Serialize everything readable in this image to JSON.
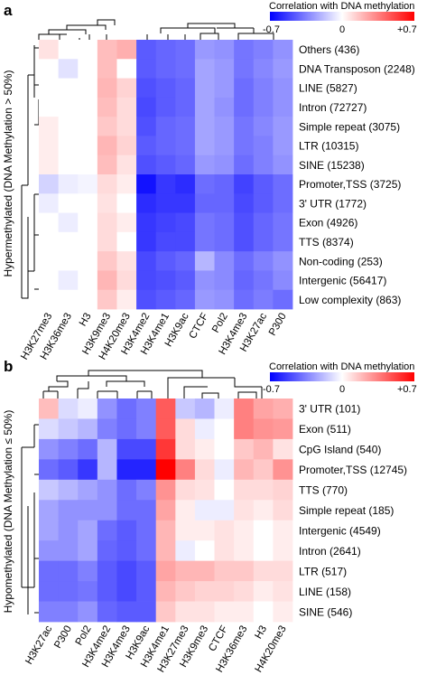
{
  "chart_data": [
    {
      "type": "heatmap",
      "panel_label": "a",
      "ylabel": "Hypermethylated (DNA Methylation > 50%)",
      "colorbar": {
        "title": "Correlation with DNA methylation",
        "min_label": "-0.7",
        "mid_label": "0",
        "max_label": "+0.7",
        "min": -0.7,
        "max": 0.7
      },
      "columns": [
        "H3K27me3",
        "H3K36me3",
        "H3",
        "H3K9me3",
        "H4K20me3",
        "H3K4me2",
        "H3K4me1",
        "H3K9ac",
        "CTCF",
        "Pol2",
        "H3K4me3",
        "H3K27ac",
        "P300"
      ],
      "rows": [
        "Others (436)",
        "DNA Transposon (2248)",
        "LINE (5827)",
        "Intron (72727)",
        "Simple repeat (3075)",
        "LTR (10315)",
        "SINE (15238)",
        "Promoter,TSS (3725)",
        "3' UTR (1772)",
        "Exon (4926)",
        "TTS (8374)",
        "Non-coding (253)",
        "Intergenic (56417)",
        "Low complexity (863)"
      ],
      "values": [
        [
          0.08,
          0.0,
          0.0,
          0.18,
          0.22,
          -0.45,
          -0.42,
          -0.4,
          -0.28,
          -0.3,
          -0.38,
          -0.35,
          -0.3
        ],
        [
          0.0,
          -0.08,
          0.0,
          0.18,
          0.0,
          -0.45,
          -0.42,
          -0.4,
          -0.25,
          -0.28,
          -0.38,
          -0.33,
          -0.28
        ],
        [
          0.0,
          0.0,
          0.0,
          0.2,
          0.12,
          -0.48,
          -0.45,
          -0.42,
          -0.25,
          -0.28,
          -0.4,
          -0.35,
          -0.3
        ],
        [
          0.0,
          0.0,
          0.0,
          0.18,
          0.1,
          -0.5,
          -0.45,
          -0.42,
          -0.25,
          -0.3,
          -0.4,
          -0.35,
          -0.3
        ],
        [
          0.05,
          0.0,
          0.0,
          0.15,
          0.1,
          -0.48,
          -0.42,
          -0.4,
          -0.25,
          -0.28,
          -0.38,
          -0.33,
          -0.28
        ],
        [
          0.05,
          0.0,
          0.0,
          0.2,
          0.12,
          -0.45,
          -0.42,
          -0.4,
          -0.25,
          -0.28,
          -0.38,
          -0.35,
          -0.28
        ],
        [
          0.05,
          0.0,
          0.0,
          0.18,
          0.08,
          -0.48,
          -0.45,
          -0.42,
          -0.28,
          -0.3,
          -0.4,
          -0.35,
          -0.3
        ],
        [
          -0.12,
          -0.05,
          -0.03,
          0.1,
          0.05,
          -0.65,
          -0.55,
          -0.58,
          -0.4,
          -0.42,
          -0.52,
          -0.45,
          -0.4
        ],
        [
          -0.05,
          0.0,
          0.0,
          0.08,
          0.0,
          -0.58,
          -0.55,
          -0.55,
          -0.42,
          -0.42,
          -0.5,
          -0.45,
          -0.4
        ],
        [
          0.0,
          -0.05,
          0.0,
          0.1,
          0.05,
          -0.55,
          -0.52,
          -0.5,
          -0.38,
          -0.4,
          -0.48,
          -0.42,
          -0.38
        ],
        [
          0.0,
          0.0,
          0.0,
          0.1,
          0.0,
          -0.55,
          -0.5,
          -0.5,
          -0.38,
          -0.4,
          -0.48,
          -0.42,
          -0.38
        ],
        [
          0.0,
          0.0,
          0.0,
          0.15,
          0.08,
          -0.5,
          -0.45,
          -0.42,
          -0.2,
          -0.32,
          -0.4,
          -0.35,
          -0.3
        ],
        [
          0.0,
          -0.05,
          0.0,
          0.2,
          0.1,
          -0.5,
          -0.48,
          -0.45,
          -0.3,
          -0.32,
          -0.42,
          -0.38,
          -0.32
        ],
        [
          0.0,
          0.0,
          0.0,
          0.15,
          0.05,
          -0.48,
          -0.45,
          -0.42,
          -0.28,
          -0.3,
          -0.4,
          -0.36,
          -0.4
        ]
      ]
    },
    {
      "type": "heatmap",
      "panel_label": "b",
      "ylabel": "Hypomethylated (DNA Methylation ≤ 50%)",
      "colorbar": {
        "title": "Correlation with DNA methylation",
        "min_label": "-0.7",
        "mid_label": "0",
        "max_label": "+0.7",
        "min": -0.7,
        "max": 0.7
      },
      "columns": [
        "H3K27ac",
        "P300",
        "Pol2",
        "H3K4me2",
        "H3K4me3",
        "H3K9ac",
        "H3K4me1",
        "H3K27me3",
        "H3K9me3",
        "CTCF",
        "H3K36me3",
        "H3",
        "H4K20me3"
      ],
      "rows": [
        "3' UTR (101)",
        "Exon (511)",
        "CpG Island (540)",
        "Promoter,TSS (12745)",
        "TTS (770)",
        "Simple repeat (185)",
        "Intergenic (4549)",
        "Intron (2641)",
        "LTR (517)",
        "LINE (158)",
        "SINE (546)"
      ],
      "values": [
        [
          0.18,
          -0.1,
          -0.05,
          -0.3,
          -0.4,
          -0.35,
          0.45,
          -0.15,
          -0.2,
          -0.05,
          0.35,
          0.25,
          0.22
        ],
        [
          -0.1,
          -0.15,
          -0.2,
          -0.35,
          -0.4,
          -0.35,
          0.45,
          0.1,
          -0.05,
          0.0,
          0.35,
          0.3,
          0.28
        ],
        [
          -0.3,
          -0.35,
          -0.4,
          -0.2,
          -0.5,
          -0.5,
          0.55,
          0.1,
          0.05,
          0.0,
          0.15,
          0.2,
          0.08
        ],
        [
          -0.4,
          -0.45,
          -0.55,
          -0.2,
          -0.6,
          -0.6,
          0.7,
          0.35,
          0.1,
          -0.05,
          0.2,
          0.15,
          0.3
        ],
        [
          -0.15,
          -0.2,
          -0.25,
          -0.3,
          -0.4,
          -0.35,
          0.3,
          0.1,
          0.08,
          0.0,
          0.1,
          0.1,
          0.12
        ],
        [
          -0.25,
          -0.3,
          -0.3,
          -0.3,
          -0.4,
          -0.4,
          0.25,
          0.05,
          -0.05,
          -0.05,
          0.08,
          0.05,
          0.1
        ],
        [
          -0.25,
          -0.3,
          -0.25,
          -0.4,
          -0.45,
          -0.4,
          0.2,
          0.05,
          0.05,
          0.08,
          0.05,
          0.0,
          0.05
        ],
        [
          -0.3,
          -0.3,
          -0.25,
          -0.42,
          -0.45,
          -0.4,
          0.2,
          -0.05,
          0.0,
          0.08,
          0.05,
          0.0,
          0.05
        ],
        [
          -0.4,
          -0.4,
          -0.35,
          -0.45,
          -0.5,
          -0.45,
          0.25,
          0.2,
          0.2,
          0.15,
          0.15,
          0.1,
          0.1
        ],
        [
          -0.4,
          -0.4,
          -0.38,
          -0.45,
          -0.5,
          -0.45,
          0.2,
          0.15,
          0.12,
          0.12,
          0.1,
          0.05,
          0.08
        ],
        [
          -0.35,
          -0.35,
          -0.3,
          -0.42,
          -0.45,
          -0.45,
          0.15,
          0.08,
          0.08,
          0.05,
          0.05,
          0.0,
          0.05
        ]
      ]
    }
  ]
}
